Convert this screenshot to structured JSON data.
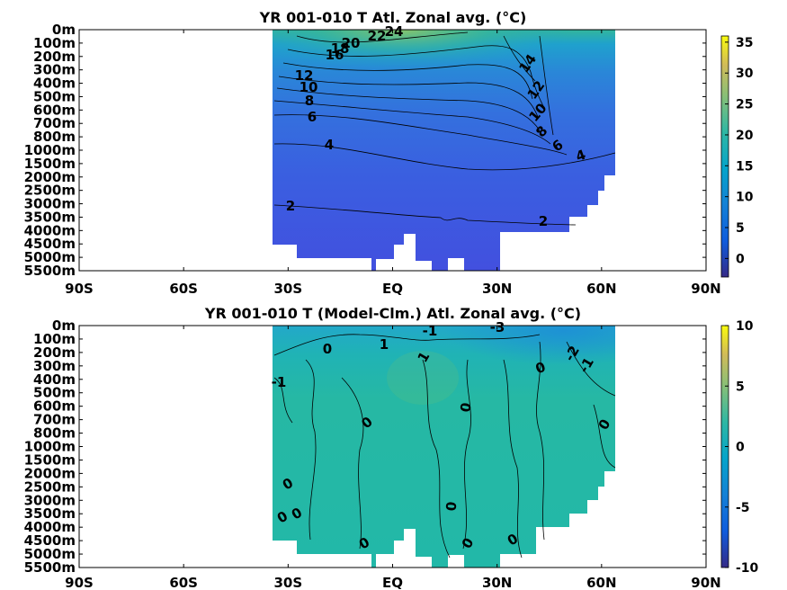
{
  "chart_data": [
    {
      "type": "heatmap",
      "title": "YR 001-010 T Atl. Zonal avg. (°C)",
      "xlim": [
        -90,
        90
      ],
      "x_ticks": [
        {
          "value": -90,
          "label": "90S"
        },
        {
          "value": -60,
          "label": "60S"
        },
        {
          "value": -30,
          "label": "30S"
        },
        {
          "value": 0,
          "label": "EQ"
        },
        {
          "value": 30,
          "label": "30N"
        },
        {
          "value": 60,
          "label": "60N"
        },
        {
          "value": 90,
          "label": "90N"
        }
      ],
      "y_ticks": [
        "0m",
        "100m",
        "200m",
        "300m",
        "400m",
        "500m",
        "600m",
        "700m",
        "800m",
        "1000m",
        "1500m",
        "2000m",
        "2500m",
        "3000m",
        "3500m",
        "4000m",
        "4500m",
        "5000m",
        "5500m"
      ],
      "y_reversed": true,
      "data_extent_lat": [
        -35,
        63
      ],
      "colorbar": {
        "ticks": [
          35,
          30,
          25,
          20,
          15,
          10,
          5,
          0
        ],
        "range": [
          -3,
          36
        ]
      },
      "contour_labels": [
        "24",
        "22",
        "20",
        "18",
        "16",
        "14",
        "12",
        "10",
        "8",
        "6",
        "4",
        "2",
        "12",
        "10",
        "8",
        "6",
        "4",
        "2",
        "14"
      ]
    },
    {
      "type": "heatmap",
      "title": "YR 001-010 T (Model-Clm.) Atl. Zonal avg. (°C)",
      "xlim": [
        -90,
        90
      ],
      "x_ticks": [
        {
          "value": -90,
          "label": "90S"
        },
        {
          "value": -60,
          "label": "60S"
        },
        {
          "value": -30,
          "label": "30S"
        },
        {
          "value": 0,
          "label": "EQ"
        },
        {
          "value": 30,
          "label": "30N"
        },
        {
          "value": 60,
          "label": "60N"
        },
        {
          "value": 90,
          "label": "90N"
        }
      ],
      "y_ticks": [
        "0m",
        "100m",
        "200m",
        "300m",
        "400m",
        "500m",
        "600m",
        "700m",
        "800m",
        "1000m",
        "1500m",
        "2000m",
        "2500m",
        "3000m",
        "3500m",
        "4000m",
        "4500m",
        "5000m",
        "5500m"
      ],
      "y_reversed": true,
      "data_extent_lat": [
        -35,
        63
      ],
      "colorbar": {
        "ticks": [
          10,
          5,
          0,
          -5,
          -10
        ],
        "range": [
          -10,
          10
        ]
      },
      "contour_labels": [
        "-3",
        "-1",
        "1",
        "0",
        "1",
        "-2",
        "-1",
        "0",
        "-1",
        "0",
        "0",
        "0",
        "0",
        "0",
        "0",
        "0",
        "0",
        "0"
      ]
    }
  ]
}
